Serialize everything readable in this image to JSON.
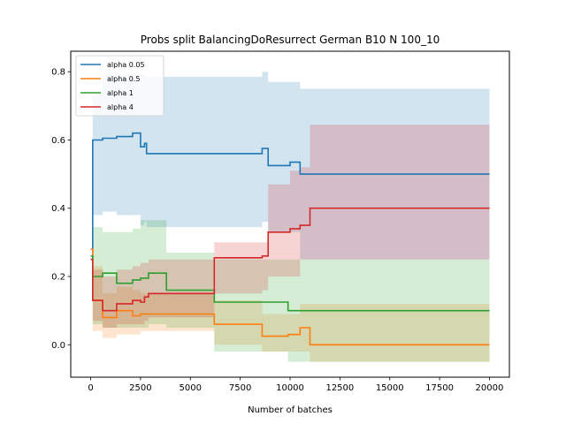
{
  "chart_data": {
    "type": "line",
    "title": "Probs split BalancingDoResurrect German B10 N 100_10",
    "xlabel": "Number of batches",
    "ylabel": "",
    "xlim": [
      -1000,
      21000
    ],
    "ylim": [
      -0.095,
      0.86
    ],
    "xticks": [
      0,
      2500,
      5000,
      7500,
      10000,
      12500,
      15000,
      17500,
      20000
    ],
    "xtick_labels": [
      "0",
      "2500",
      "5000",
      "7500",
      "10000",
      "12500",
      "15000",
      "17500",
      "20000"
    ],
    "yticks": [
      0.0,
      0.2,
      0.4,
      0.6,
      0.8
    ],
    "ytick_labels": [
      "0.0",
      "0.2",
      "0.4",
      "0.6",
      "0.8"
    ],
    "grid": false,
    "legend_position": "top-left",
    "series": [
      {
        "name": "alpha 0.05",
        "color": "#1f77b4",
        "x": [
          0,
          100,
          600,
          1300,
          2100,
          2500,
          2700,
          2800,
          8600,
          8900,
          10000,
          10500,
          20000
        ],
        "y": [
          0.25,
          0.6,
          0.605,
          0.61,
          0.62,
          0.58,
          0.59,
          0.56,
          0.575,
          0.525,
          0.535,
          0.5,
          0.5
        ],
        "lower": [
          0.3,
          0.38,
          0.39,
          0.38,
          0.38,
          0.35,
          0.36,
          0.345,
          0.36,
          0.33,
          0.33,
          0.25,
          0.25
        ],
        "upper": [
          0.3,
          0.73,
          0.79,
          0.79,
          0.79,
          0.79,
          0.785,
          0.785,
          0.8,
          0.77,
          0.77,
          0.75,
          0.75
        ]
      },
      {
        "name": "alpha 0.5",
        "color": "#ff7f0e",
        "x": [
          0,
          100,
          600,
          1300,
          2100,
          2500,
          3800,
          6200,
          8600,
          9900,
          10500,
          11000,
          20000
        ],
        "y": [
          0.28,
          0.13,
          0.08,
          0.1,
          0.085,
          0.09,
          0.09,
          0.06,
          0.025,
          0.03,
          0.05,
          0.0,
          0.0
        ],
        "lower": [
          0.29,
          0.04,
          0.02,
          0.03,
          0.03,
          0.04,
          0.04,
          0.0,
          -0.02,
          -0.02,
          -0.02,
          -0.05,
          -0.05
        ],
        "upper": [
          0.29,
          0.23,
          0.15,
          0.17,
          0.16,
          0.15,
          0.15,
          0.13,
          0.09,
          0.09,
          0.12,
          0.12,
          0.12
        ]
      },
      {
        "name": "alpha 1",
        "color": "#2ca02c",
        "x": [
          0,
          100,
          600,
          1300,
          2100,
          2500,
          2900,
          3800,
          6200,
          9900,
          20000
        ],
        "y": [
          0.26,
          0.2,
          0.21,
          0.18,
          0.19,
          0.195,
          0.21,
          0.16,
          0.125,
          0.1,
          0.1
        ],
        "lower": [
          0.28,
          0.06,
          0.05,
          0.05,
          0.05,
          0.05,
          0.06,
          0.05,
          -0.02,
          -0.05,
          -0.05
        ],
        "upper": [
          0.28,
          0.345,
          0.33,
          0.33,
          0.34,
          0.365,
          0.365,
          0.27,
          0.25,
          0.25,
          0.25
        ]
      },
      {
        "name": "alpha 4",
        "color": "#d62728",
        "x": [
          0,
          100,
          600,
          1300,
          2100,
          2500,
          2700,
          2900,
          6200,
          8600,
          8900,
          10000,
          10500,
          11000,
          20000
        ],
        "y": [
          0.25,
          0.13,
          0.1,
          0.12,
          0.13,
          0.125,
          0.14,
          0.15,
          0.255,
          0.26,
          0.33,
          0.34,
          0.35,
          0.4,
          0.4
        ],
        "lower": [
          0.27,
          0.07,
          0.05,
          0.06,
          0.06,
          0.06,
          0.07,
          0.08,
          0.15,
          0.16,
          0.2,
          0.2,
          0.25,
          0.25,
          0.25
        ],
        "upper": [
          0.27,
          0.22,
          0.2,
          0.22,
          0.23,
          0.24,
          0.24,
          0.25,
          0.3,
          0.3,
          0.47,
          0.51,
          0.52,
          0.645,
          0.645
        ]
      }
    ]
  }
}
